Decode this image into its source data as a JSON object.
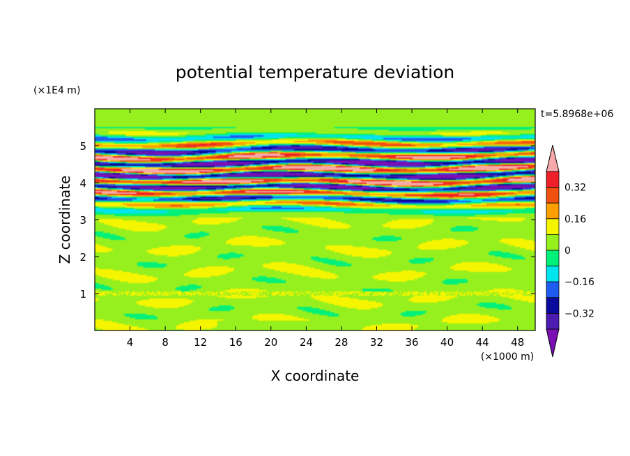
{
  "chart_data": {
    "type": "heatmap",
    "title": "potential temperature deviation",
    "xlabel": "X coordinate",
    "ylabel": "Z coordinate",
    "x_unit": "(×1000 m)",
    "y_unit": "(×1E4 m)",
    "time_label": "t=5.8968e+06",
    "x_ticks": [
      4,
      8,
      12,
      16,
      20,
      24,
      28,
      32,
      36,
      40,
      44,
      48
    ],
    "y_ticks": [
      1,
      2,
      3,
      4,
      5
    ],
    "xlim": [
      0,
      50
    ],
    "ylim": [
      0,
      6
    ],
    "colorbar": {
      "levels": [
        -0.48,
        -0.4,
        -0.32,
        -0.24,
        -0.16,
        -0.08,
        0,
        0.08,
        0.16,
        0.24,
        0.32,
        0.4
      ],
      "labels": [
        "0.32",
        "0.16",
        "0",
        "−0.16",
        "−0.32"
      ],
      "label_values": [
        0.32,
        0.16,
        0,
        -0.16,
        -0.32
      ],
      "colors": [
        "#7a10b4",
        "#4c1bb0",
        "#0a0a9e",
        "#1e5cf0",
        "#00e4f0",
        "#00f07a",
        "#96f01e",
        "#f5f500",
        "#ffa000",
        "#f05010",
        "#f0202a",
        "#f7a8a8"
      ],
      "extend": "both"
    },
    "field_structure": [
      {
        "z_range": [
          0,
          1
        ],
        "description": "mostly near-zero with weak positive patches",
        "amplitude": 0.1
      },
      {
        "z_range": [
          1,
          3
        ],
        "description": "layered weak anomalies",
        "amplitude": 0.1
      },
      {
        "z_range": [
          3,
          5.5
        ],
        "description": "strong alternating horizontal bands",
        "amplitude": 0.48
      },
      {
        "z_range": [
          5.5,
          6
        ],
        "description": "near-zero",
        "amplitude": 0.05
      }
    ]
  }
}
